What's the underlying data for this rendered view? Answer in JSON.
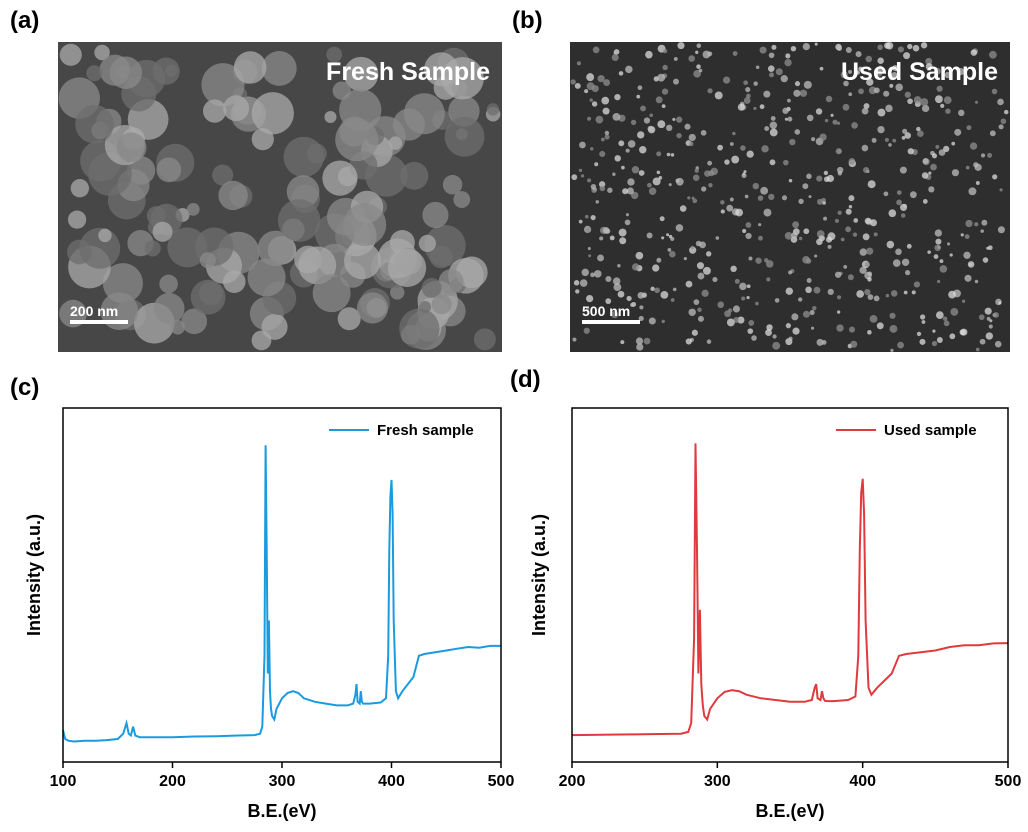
{
  "images": [
    {
      "label": "(a)",
      "caption": "Fresh Sample",
      "scale": "200 nm"
    },
    {
      "label": "(b)",
      "caption": "Used Sample",
      "scale": "500 nm"
    }
  ],
  "chart_data": [
    {
      "type": "line",
      "panel_label": "(c)",
      "x_label": "B.E.(eV)",
      "y_label": "Intensity (a.u.)",
      "xlim": [
        100,
        500
      ],
      "xticks": [
        100,
        200,
        300,
        400,
        500
      ],
      "ylim": [
        0,
        100
      ],
      "legend": "upper right",
      "x": [
        100,
        102,
        105,
        110,
        120,
        130,
        140,
        150,
        155,
        158,
        160,
        162,
        164,
        166,
        170,
        180,
        200,
        220,
        240,
        260,
        275,
        280,
        282,
        284,
        285,
        286,
        287,
        288,
        289,
        290,
        291,
        293,
        295,
        300,
        305,
        310,
        315,
        320,
        330,
        340,
        350,
        360,
        365,
        367,
        368,
        369,
        371,
        372,
        373,
        374,
        376,
        380,
        390,
        395,
        397,
        398,
        399,
        400,
        401,
        402,
        404,
        406,
        410,
        420,
        425,
        430,
        440,
        450,
        460,
        470,
        480,
        490,
        500
      ],
      "series": [
        {
          "name": "Fresh sample",
          "color": "#1a9be0",
          "values": [
            9,
            6.5,
            6,
            5.8,
            6,
            6,
            6.2,
            6.5,
            8,
            11,
            8,
            7.5,
            10,
            7.5,
            7,
            7,
            7,
            7.2,
            7.3,
            7.5,
            7.6,
            8,
            10,
            30,
            89.5,
            60,
            25,
            40,
            20,
            15,
            13,
            12,
            15,
            18,
            19.5,
            20,
            19.5,
            18,
            17,
            16.5,
            16,
            16,
            16.5,
            19,
            22,
            17,
            16.5,
            20,
            17,
            16.5,
            16.5,
            16.5,
            16.8,
            18,
            30,
            60,
            75,
            79.7,
            70,
            40,
            20,
            18,
            20,
            24,
            30,
            30.5,
            31,
            31.5,
            32,
            32.5,
            32.3,
            32.8,
            32.8
          ]
        }
      ]
    },
    {
      "type": "line",
      "panel_label": "(d)",
      "x_label": "B.E.(eV)",
      "y_label": "Intensity (a.u.)",
      "xlim": [
        200,
        500
      ],
      "xticks": [
        200,
        300,
        400,
        500
      ],
      "ylim": [
        0,
        100
      ],
      "legend": "upper right",
      "x": [
        200,
        220,
        240,
        260,
        275,
        280,
        282,
        284,
        285,
        286,
        287,
        288,
        289,
        290,
        291,
        293,
        295,
        300,
        305,
        310,
        315,
        320,
        330,
        340,
        350,
        360,
        365,
        367,
        368,
        369,
        371,
        372,
        373,
        374,
        376,
        380,
        390,
        395,
        397,
        398,
        399,
        400,
        401,
        402,
        404,
        406,
        410,
        420,
        425,
        430,
        440,
        450,
        460,
        470,
        480,
        490,
        500
      ],
      "series": [
        {
          "name": "Used sample",
          "color": "#e03a3e",
          "values": [
            7.6,
            7.7,
            7.8,
            7.9,
            8,
            8.5,
            11,
            35,
            90,
            60,
            25,
            43,
            22,
            16,
            13,
            12,
            15,
            18,
            19.8,
            20.3,
            20,
            19,
            18,
            17.5,
            17,
            17,
            17.5,
            21,
            22,
            18,
            17.5,
            20,
            18,
            17.3,
            17.2,
            17.2,
            17.5,
            18.5,
            30,
            60,
            76,
            80,
            70,
            40,
            21,
            19,
            21,
            25,
            30,
            30.5,
            31,
            31.5,
            32.5,
            33,
            33,
            33.5,
            33.6
          ]
        }
      ]
    }
  ]
}
